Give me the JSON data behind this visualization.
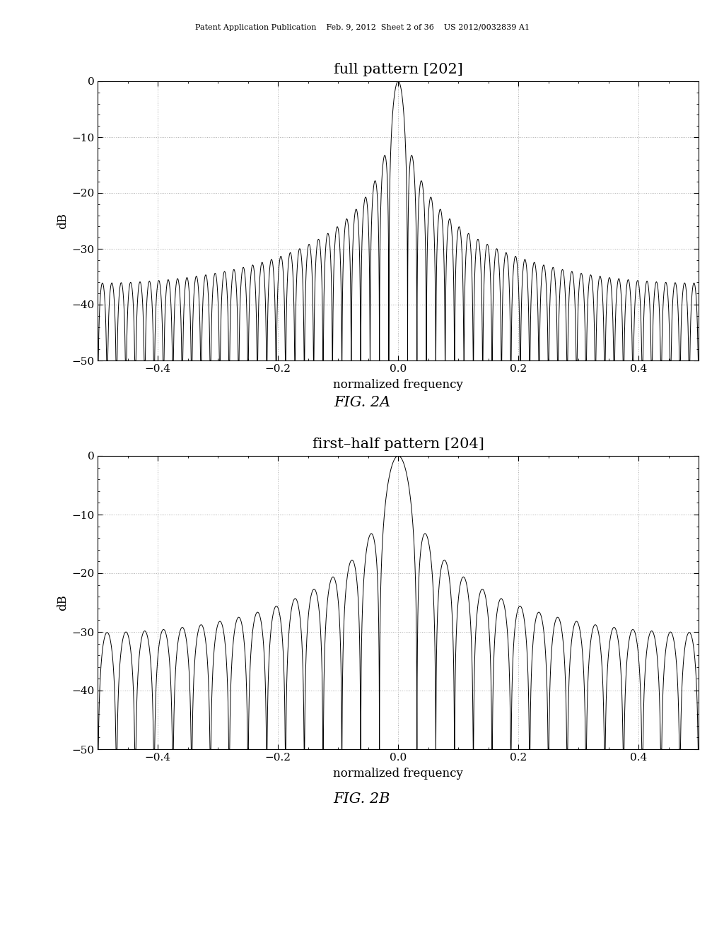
{
  "fig2a_title": "full pattern [202]",
  "fig2b_title": "first–half pattern [204]",
  "fig2a_caption": "FIG. 2A",
  "fig2b_caption": "FIG. 2B",
  "xlabel": "normalized frequency",
  "ylabel": "dB",
  "xlim": [
    -0.5,
    0.5
  ],
  "ylim": [
    -50,
    0
  ],
  "yticks": [
    0,
    -10,
    -20,
    -30,
    -40,
    -50
  ],
  "xticks": [
    -0.4,
    -0.2,
    0.0,
    0.2,
    0.4
  ],
  "header_text": "Patent Application Publication    Feb. 9, 2012  Sheet 2 of 36    US 2012/0032839 A1",
  "N_full": 64,
  "N_half": 32,
  "background_color": "#ffffff",
  "line_color": "#000000",
  "grid_color": "#999999",
  "title_fontsize": 15,
  "label_fontsize": 12,
  "tick_fontsize": 11,
  "caption_fontsize": 15,
  "header_fontsize": 8
}
